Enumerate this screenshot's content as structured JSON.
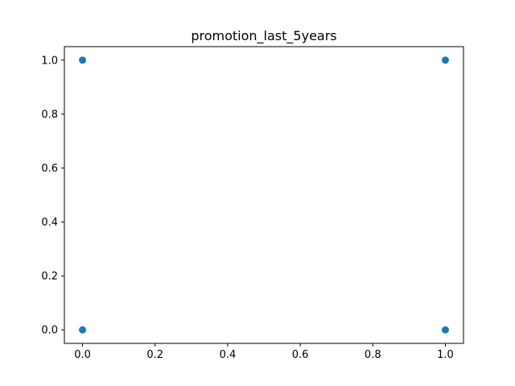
{
  "chart_data": {
    "type": "scatter",
    "title": "promotion_last_5years",
    "xlabel": "",
    "ylabel": "",
    "xlim": [
      -0.05,
      1.05
    ],
    "ylim": [
      -0.05,
      1.05
    ],
    "x_ticks": [
      0.0,
      0.2,
      0.4,
      0.6,
      0.8,
      1.0
    ],
    "x_tick_labels": [
      "0.0",
      "0.2",
      "0.4",
      "0.6",
      "0.8",
      "1.0"
    ],
    "y_ticks": [
      0.0,
      0.2,
      0.4,
      0.6,
      0.8,
      1.0
    ],
    "y_tick_labels": [
      "0.0",
      "0.2",
      "0.4",
      "0.6",
      "0.8",
      "1.0"
    ],
    "grid": false,
    "legend": "none",
    "marker_color": "#1f77b4",
    "points": [
      {
        "x": 0.0,
        "y": 0.0
      },
      {
        "x": 0.0,
        "y": 1.0
      },
      {
        "x": 1.0,
        "y": 0.0
      },
      {
        "x": 1.0,
        "y": 1.0
      }
    ]
  }
}
